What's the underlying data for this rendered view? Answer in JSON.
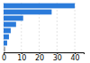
{
  "chart_data": {
    "type": "bar",
    "orientation": "horizontal",
    "categories": [
      null,
      null,
      null,
      null,
      null,
      null,
      null,
      null
    ],
    "values": [
      40,
      27,
      11,
      7,
      4,
      3,
      2,
      1
    ],
    "colors": [
      "#2b7bda",
      "#2b7bda",
      "#2b7bda",
      "#2b7bda",
      "#2b7bda",
      "#2b7bda",
      "#2b7bda",
      "#b0b0b0"
    ],
    "xlim": [
      0,
      45
    ],
    "xticks": [
      0,
      10,
      20,
      30,
      40
    ],
    "grid": true,
    "tick_labels": "x"
  }
}
